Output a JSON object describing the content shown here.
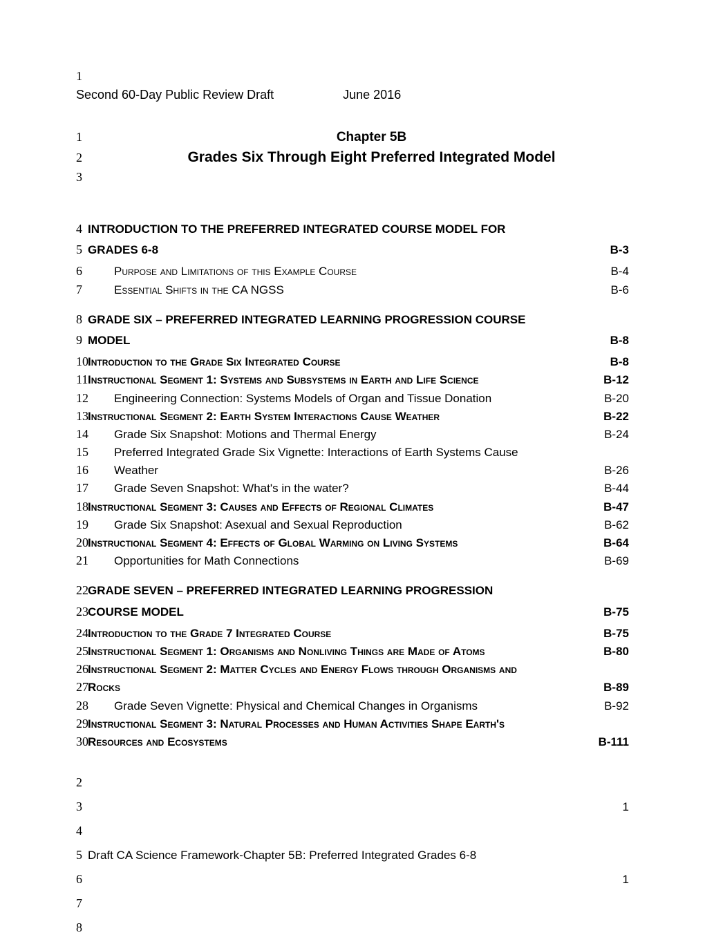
{
  "header": {
    "page_num_top": "1",
    "left": "Second 60-Day Public Review Draft",
    "right": "June 2016"
  },
  "title": {
    "line1_num": "1",
    "line1": "Chapter 5B",
    "line2_num": "2",
    "line2": "Grades Six Through Eight Preferred Integrated Model",
    "line3_num": "3"
  },
  "intro": {
    "line4_num": "4",
    "line5_num": "5",
    "text1": "INTRODUCTION TO THE PREFERRED INTEGRATED COURSE MODEL FOR",
    "text2": "GRADES 6-8",
    "page": "B-3",
    "sub1_num": "6",
    "sub1": "Purpose and Limitations of this Example Course",
    "sub1_page": "B-4",
    "sub2_num": "7",
    "sub2": "Essential Shifts in the CA NGSS",
    "sub2_page": "B-6"
  },
  "grade6": {
    "line8_num": "8",
    "line9_num": "9",
    "title1": "GRADE SIX – PREFERRED INTEGRATED LEARNING PROGRESSION COURSE",
    "title2": "MODEL",
    "page": "B-8"
  },
  "toc": [
    {
      "num": "10",
      "text": "Introduction to the Grade Six Integrated Course",
      "page": "B-8",
      "smallcaps": true,
      "bold": true
    },
    {
      "num": "11",
      "text": "Instructional Segment 1: Systems and Subsystems in Earth and Life Science",
      "page": "B-12",
      "smallcaps": true,
      "bold": true
    },
    {
      "num": "12",
      "text": "Engineering Connection: Systems Models of Organ and Tissue Donation",
      "page": "B-20",
      "indent": true
    },
    {
      "num": "13",
      "text": "Instructional Segment 2: Earth System Interactions Cause Weather",
      "page": "B-22",
      "smallcaps": true,
      "bold": true
    },
    {
      "num": "14",
      "text": "Grade Six Snapshot: Motions and Thermal Energy",
      "page": "B-24",
      "indent": true
    },
    {
      "num": "15",
      "text": "Preferred Integrated Grade Six Vignette: Interactions of Earth Systems Cause",
      "page": "",
      "indent": true
    },
    {
      "num": "16",
      "text": "Weather",
      "page": "B-26",
      "indent": true
    },
    {
      "num": "17",
      "text": "Grade Seven Snapshot: What's in the water?",
      "page": "B-44",
      "indent": true
    },
    {
      "num": "18",
      "text": "Instructional Segment 3: Causes and Effects of Regional Climates",
      "page": "B-47",
      "smallcaps": true,
      "bold": true
    },
    {
      "num": "19",
      "text": "Grade Six Snapshot: Asexual and Sexual Reproduction",
      "page": "B-62",
      "indent": true
    },
    {
      "num": "20",
      "text": "Instructional Segment 4: Effects of Global Warming on Living Systems",
      "page": "B-64",
      "smallcaps": true,
      "bold": true
    },
    {
      "num": "21",
      "text": "Opportunities for Math Connections",
      "page": "B-69",
      "indent": true
    }
  ],
  "grade7": {
    "line22_num": "22",
    "line23_num": "23",
    "title1": "GRADE SEVEN – PREFERRED INTEGRATED LEARNING PROGRESSION",
    "title2": "COURSE MODEL",
    "page": "B-75"
  },
  "toc7": [
    {
      "num": "24",
      "text": "Introduction to the Grade 7 Integrated Course",
      "page": "B-75",
      "smallcaps": true,
      "bold": true
    },
    {
      "num": "25",
      "text": "Instructional Segment 1: Organisms and Nonliving Things are Made of Atoms",
      "page": "B-80",
      "smallcaps": true,
      "bold": true
    },
    {
      "num": "26",
      "text": "Instructional Segment 2: Matter Cycles and Energy Flows through Organisms and",
      "page": "",
      "smallcaps": true,
      "bold": true
    },
    {
      "num": "27",
      "text": "Rocks",
      "page": "B-89",
      "smallcaps": true,
      "bold": true
    },
    {
      "num": "28",
      "text": "Grade Seven Vignette:  Physical and Chemical Changes in Organisms",
      "page": "B-92",
      "indent": true
    },
    {
      "num": "29",
      "text": "Instructional Segment 3: Natural Processes and Human Activities Shape Earth's",
      "page": "",
      "smallcaps": true,
      "bold": true
    },
    {
      "num": "30",
      "text": "Resources and Ecosystems",
      "page": "B-111",
      "smallcaps": true,
      "bold": true
    }
  ],
  "footer": {
    "rows": [
      {
        "num": "2",
        "text": "",
        "page": ""
      },
      {
        "num": "3",
        "text": "",
        "page": "1"
      },
      {
        "num": "4",
        "text": "",
        "page": ""
      },
      {
        "num": "5",
        "text": "Draft CA Science Framework-Chapter 5B: Preferred Integrated Grades 6-8",
        "page": ""
      },
      {
        "num": "6",
        "text": "",
        "page": "1"
      },
      {
        "num": "7",
        "text": "",
        "page": ""
      },
      {
        "num": "8",
        "text": "",
        "page": ""
      }
    ]
  }
}
